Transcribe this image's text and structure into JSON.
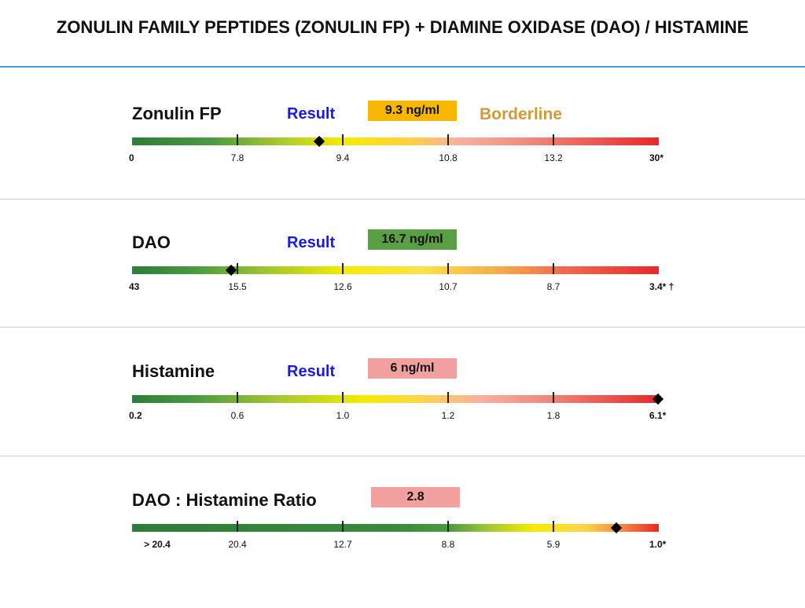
{
  "title": "ZONULIN FAMILY PEPTIDES (ZONULIN FP) + DIAMINE OXIDASE (DAO) / HISTAMINE",
  "colors": {
    "title_rule": "#5b8fd6",
    "result_word": "#1a1ae6",
    "borderline": "#d59a38"
  },
  "tests": [
    {
      "name": "Zonulin FP",
      "result_word": "Result",
      "value": "9.3 ng/ml",
      "value_color": "#f7b600",
      "status": "Borderline",
      "tick_labels": [
        "0",
        "7.8",
        "9.4",
        "10.8",
        "13.2",
        "30*"
      ],
      "marker_fraction": 0.355,
      "gradient": "linear-gradient(to right, #2e7d3a 0%, #4a9a40 15%, #a8c830 28%, #f4ec00 40%, #ffd23a 52%, #f8b0a0 62%, #f08a80 75%, #e8282a 100%)"
    },
    {
      "name": "DAO",
      "result_word": "Result",
      "value": "16.7 ng/ml",
      "value_color": "#5a9e45",
      "status": "",
      "tick_labels": [
        "43",
        "15.5",
        "12.6",
        "10.7",
        "8.7",
        "3.4* †"
      ],
      "marker_fraction": 0.188,
      "gradient": "linear-gradient(to right, #2e7d3a 0%, #4a9a40 12%, #9cc430 25%, #f4ec00 40%, #ffe24a 55%, #f6a94a 70%, #f06a50 82%, #e8282a 100%)"
    },
    {
      "name": "Histamine",
      "result_word": "Result",
      "value": "6 ng/ml",
      "value_color": "#f3a0a0",
      "status": "",
      "tick_labels": [
        "0.2",
        "0.6",
        "1.0",
        "1.2",
        "1.8",
        "6.1*"
      ],
      "marker_fraction": 0.998,
      "gradient": "linear-gradient(to right, #2e7d3a 0%, #4a9a40 12%, #a8c830 28%, #f4ec00 44%, #ffd44a 55%, #f8b0a0 66%, #f08a80 78%, #e8282a 100%)"
    },
    {
      "name": "DAO : Histamine Ratio",
      "result_word": "",
      "value": "2.8",
      "value_color": "#f3a0a0",
      "status": "",
      "tick_labels": [
        "> 20.4",
        "20.4",
        "12.7",
        "8.8",
        "5.9",
        "1.0*"
      ],
      "marker_fraction": 0.92,
      "gradient": "linear-gradient(to right, #2e7d3a 0%, #3a8a3c 50%, #4a9a40 60%, #a8c830 68%, #f4ec00 76%, #ffd44a 86%, #f67a40 94%, #e8282a 100%)"
    }
  ]
}
